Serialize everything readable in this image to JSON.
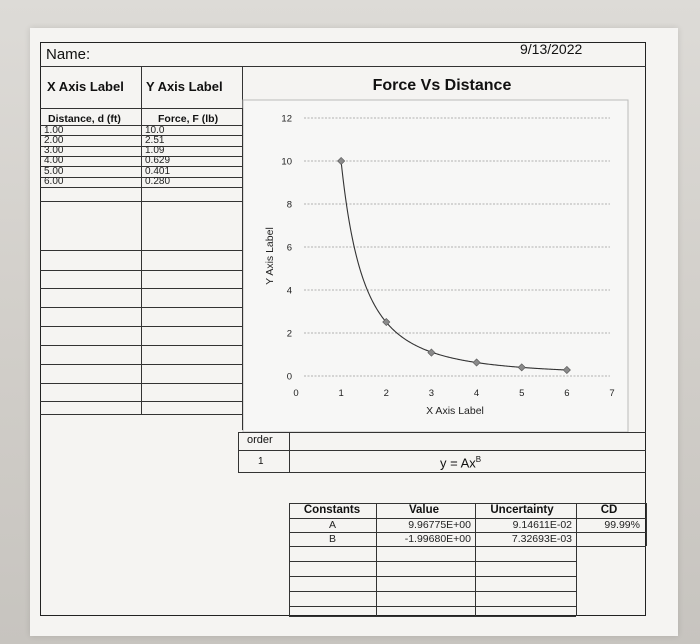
{
  "header": {
    "name_label": "Name:",
    "date": "9/13/2022"
  },
  "table_headers": {
    "x": "X Axis Label",
    "y": "Y Axis Label"
  },
  "data_table": {
    "col1": "Distance, d (ft)",
    "col2": "Force, F (lb)",
    "rows": [
      {
        "d": "1.00",
        "f": "10.0"
      },
      {
        "d": "2.00",
        "f": "2.51"
      },
      {
        "d": "3.00",
        "f": "1.09"
      },
      {
        "d": "4.00",
        "f": "0.629"
      },
      {
        "d": "5.00",
        "f": "0.401"
      },
      {
        "d": "6.00",
        "f": "0.280"
      }
    ]
  },
  "chart_data": {
    "type": "scatter",
    "title": "Force Vs Distance",
    "xlabel": "X Axis Label",
    "ylabel": "Y Axis Label",
    "xlim": [
      0,
      7
    ],
    "ylim": [
      0,
      12
    ],
    "xticks": [
      0,
      1,
      2,
      3,
      4,
      5,
      6,
      7
    ],
    "yticks": [
      0,
      2,
      4,
      6,
      8,
      10,
      12
    ],
    "grid": true,
    "x": [
      1,
      2,
      3,
      4,
      5,
      6
    ],
    "y": [
      10.0,
      2.51,
      1.09,
      0.629,
      0.401,
      0.28
    ],
    "fit": {
      "A": 9.96775,
      "B": -1.9968
    },
    "marker_color": "#8a8a8a"
  },
  "fit_section": {
    "order_label": "order",
    "order_value": "1",
    "equation_base": "y = Ax",
    "equation_exp": "B"
  },
  "constants_table": {
    "headers": [
      "Constants",
      "Value",
      "Uncertainty",
      "CD"
    ],
    "rows": [
      {
        "name": "A",
        "value": "9.96775E+00",
        "uncertainty": "9.14611E-02",
        "cd": "99.99%"
      },
      {
        "name": "B",
        "value": "-1.99680E+00",
        "uncertainty": "7.32693E-03"
      }
    ]
  }
}
